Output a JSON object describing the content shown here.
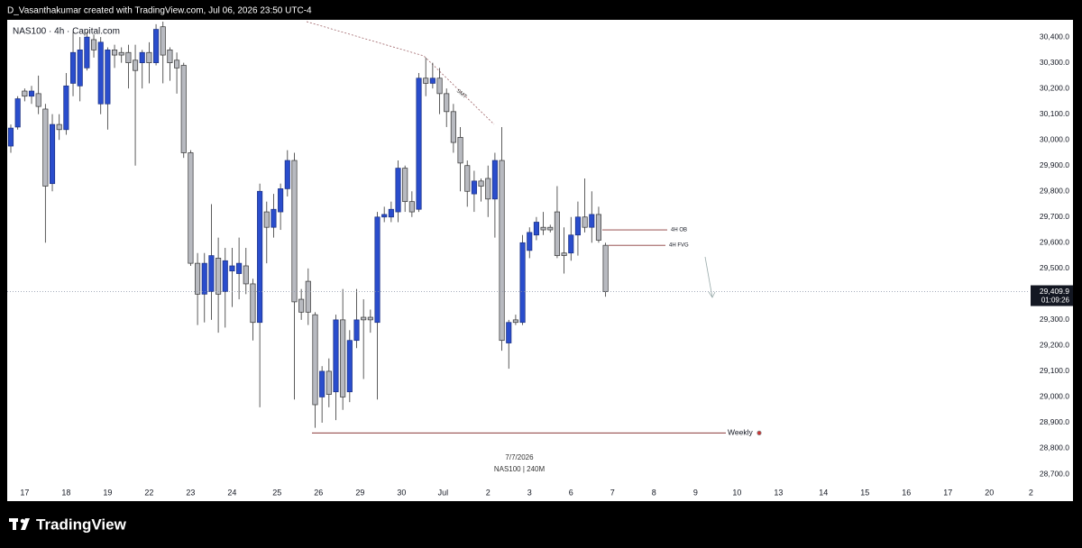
{
  "header": "D_Vasanthakumar created with TradingView.com, Jul 06, 2026 23:50 UTC-4",
  "brand": "TradingView",
  "chart_data": {
    "type": "candlestick",
    "title": "NAS100 · 4h · Capital.com",
    "up_color": "#2a4dcc",
    "down_color": "#b8bac0",
    "open": [
      29976,
      30050,
      30190,
      30170,
      30180,
      30120,
      29830,
      30060,
      30040,
      30220,
      30210,
      30280,
      30390,
      30140,
      30140,
      30350,
      30340,
      30340,
      30310,
      30300,
      30340,
      30300,
      30440,
      30350,
      30310,
      30290,
      29950,
      29520,
      29400,
      29410,
      29540,
      29410,
      29490,
      29480,
      29510,
      29440,
      29290,
      29720,
      29660,
      29720,
      29810,
      29920,
      29380,
      29450,
      29320,
      29000,
      29100,
      29020,
      29300,
      29020,
      29220,
      29310,
      29310,
      29290,
      29700,
      29700,
      29720,
      29890,
      29760,
      29730,
      30240,
      30220,
      30240,
      30180,
      30110,
      30010,
      29900,
      29790,
      29840,
      29850,
      29770,
      29920,
      29210,
      29300,
      29290,
      29570,
      29630,
      29660,
      29660,
      29720,
      29560,
      29560,
      29630,
      29700,
      29660,
      29710,
      29590
    ],
    "high": [
      30060,
      30170,
      30200,
      30210,
      30250,
      30140,
      30100,
      30100,
      30260,
      30420,
      30400,
      30420,
      30410,
      30400,
      30360,
      30370,
      30360,
      30370,
      30370,
      30350,
      30380,
      30450,
      30460,
      30360,
      30340,
      30300,
      29960,
      29560,
      29560,
      29750,
      29620,
      29580,
      29580,
      29620,
      29580,
      29460,
      29830,
      29760,
      29790,
      29830,
      29960,
      29950,
      29420,
      29500,
      29330,
      29120,
      29150,
      29320,
      29420,
      29260,
      29420,
      29380,
      29340,
      29720,
      29740,
      29760,
      29920,
      29900,
      29800,
      30260,
      30320,
      30300,
      30280,
      30200,
      30140,
      30050,
      29920,
      29880,
      29850,
      29900,
      29950,
      30050,
      29300,
      29320,
      29630,
      29660,
      29700,
      29720,
      29670,
      29820,
      29660,
      29700,
      29760,
      29850,
      29800,
      29740,
      29600
    ],
    "low": [
      29950,
      30040,
      30150,
      30140,
      30100,
      29600,
      29800,
      30000,
      30020,
      30170,
      30150,
      30270,
      30320,
      30100,
      30040,
      30280,
      30300,
      30200,
      29900,
      30200,
      30220,
      30290,
      30220,
      30230,
      30180,
      29930,
      29510,
      29280,
      29290,
      29300,
      29250,
      29270,
      29350,
      29380,
      29400,
      29220,
      28960,
      29520,
      29620,
      29650,
      29780,
      28990,
      29300,
      29280,
      28880,
      28900,
      28960,
      28910,
      28950,
      28980,
      29190,
      29070,
      29250,
      28990,
      29680,
      29680,
      29680,
      29720,
      29700,
      29720,
      30170,
      30200,
      30100,
      30050,
      29950,
      29800,
      29740,
      29720,
      29760,
      29700,
      29620,
      29180,
      29110,
      29280,
      29280,
      29540,
      29610,
      29630,
      29640,
      29540,
      29480,
      29530,
      29550,
      29640,
      29600,
      29600,
      29390
    ],
    "close": [
      30046,
      30160,
      30170,
      30190,
      30130,
      29820,
      30060,
      30040,
      30210,
      30340,
      30350,
      30400,
      30350,
      30380,
      30350,
      30330,
      30330,
      30300,
      30270,
      30340,
      30300,
      30430,
      30330,
      30300,
      30280,
      29950,
      29520,
      29400,
      29520,
      29550,
      29400,
      29530,
      29510,
      29520,
      29440,
      29290,
      29800,
      29660,
      29730,
      29810,
      29920,
      29370,
      29330,
      29330,
      28970,
      29100,
      29010,
      29300,
      29000,
      29220,
      29300,
      29300,
      29300,
      29700,
      29710,
      29730,
      29890,
      29760,
      29720,
      30240,
      30220,
      30240,
      30180,
      30110,
      29990,
      29910,
      29800,
      29840,
      29820,
      29770,
      29920,
      29220,
      29290,
      29290,
      29600,
      29640,
      29680,
      29650,
      29650,
      29550,
      29550,
      29630,
      29700,
      29660,
      29710,
      29610,
      29410
    ],
    "ylim": [
      28651,
      30467
    ],
    "yticks": [
      {
        "value": 28700,
        "label": "28,700.0"
      },
      {
        "value": 28800,
        "label": "28,800.0"
      },
      {
        "value": 28900,
        "label": "28,900.0"
      },
      {
        "value": 29000,
        "label": "29,000.0"
      },
      {
        "value": 29100,
        "label": "29,100.0"
      },
      {
        "value": 29200,
        "label": "29,200.0"
      },
      {
        "value": 29300,
        "label": "29,300.0"
      },
      {
        "value": 29500,
        "label": "29,500.0"
      },
      {
        "value": 29600,
        "label": "29,600.0"
      },
      {
        "value": 29700,
        "label": "29,700.0"
      },
      {
        "value": 29800,
        "label": "29,800.0"
      },
      {
        "value": 29900,
        "label": "29,900.0"
      },
      {
        "value": 30000,
        "label": "30,000.0"
      },
      {
        "value": 30100,
        "label": "30,100.0"
      },
      {
        "value": 30200,
        "label": "30,200.0"
      },
      {
        "value": 30300,
        "label": "30,300.0"
      },
      {
        "value": 30400,
        "label": "30,400.0"
      }
    ],
    "xticks": [
      {
        "value": 2,
        "label": "17"
      },
      {
        "value": 8,
        "label": "18"
      },
      {
        "value": 14,
        "label": "19"
      },
      {
        "value": 20,
        "label": "22"
      },
      {
        "value": 26,
        "label": "23"
      },
      {
        "value": 32,
        "label": "24"
      },
      {
        "value": 38.5,
        "label": "25"
      },
      {
        "value": 44.5,
        "label": "26"
      },
      {
        "value": 50.5,
        "label": "29"
      },
      {
        "value": 56.5,
        "label": "30"
      },
      {
        "value": 62.5,
        "label": "Jul"
      },
      {
        "value": 69,
        "label": "2"
      },
      {
        "value": 75,
        "label": "3"
      },
      {
        "value": 81,
        "label": "6"
      },
      {
        "value": 87,
        "label": "7"
      },
      {
        "value": 93,
        "label": "8"
      },
      {
        "value": 99,
        "label": "9"
      },
      {
        "value": 105,
        "label": "10"
      },
      {
        "value": 111,
        "label": "13"
      },
      {
        "value": 117.5,
        "label": "14"
      },
      {
        "value": 123.5,
        "label": "15"
      },
      {
        "value": 129.5,
        "label": "16"
      },
      {
        "value": 135.5,
        "label": "17"
      },
      {
        "value": 141.5,
        "label": "20"
      },
      {
        "value": 147.5,
        "label": "2"
      }
    ],
    "last_price": {
      "value": 29409.9,
      "label": "29,409.9"
    },
    "countdown": "01:09:26",
    "levels": [
      {
        "name": "4H OB",
        "value": 29650
      },
      {
        "name": "4H FVG",
        "value": 29590
      },
      {
        "name": "Weekly",
        "value": 28860
      }
    ],
    "annotation": "SMT",
    "date_label": "7/7/2026",
    "symbol_label": "NAS100 | 240M"
  }
}
